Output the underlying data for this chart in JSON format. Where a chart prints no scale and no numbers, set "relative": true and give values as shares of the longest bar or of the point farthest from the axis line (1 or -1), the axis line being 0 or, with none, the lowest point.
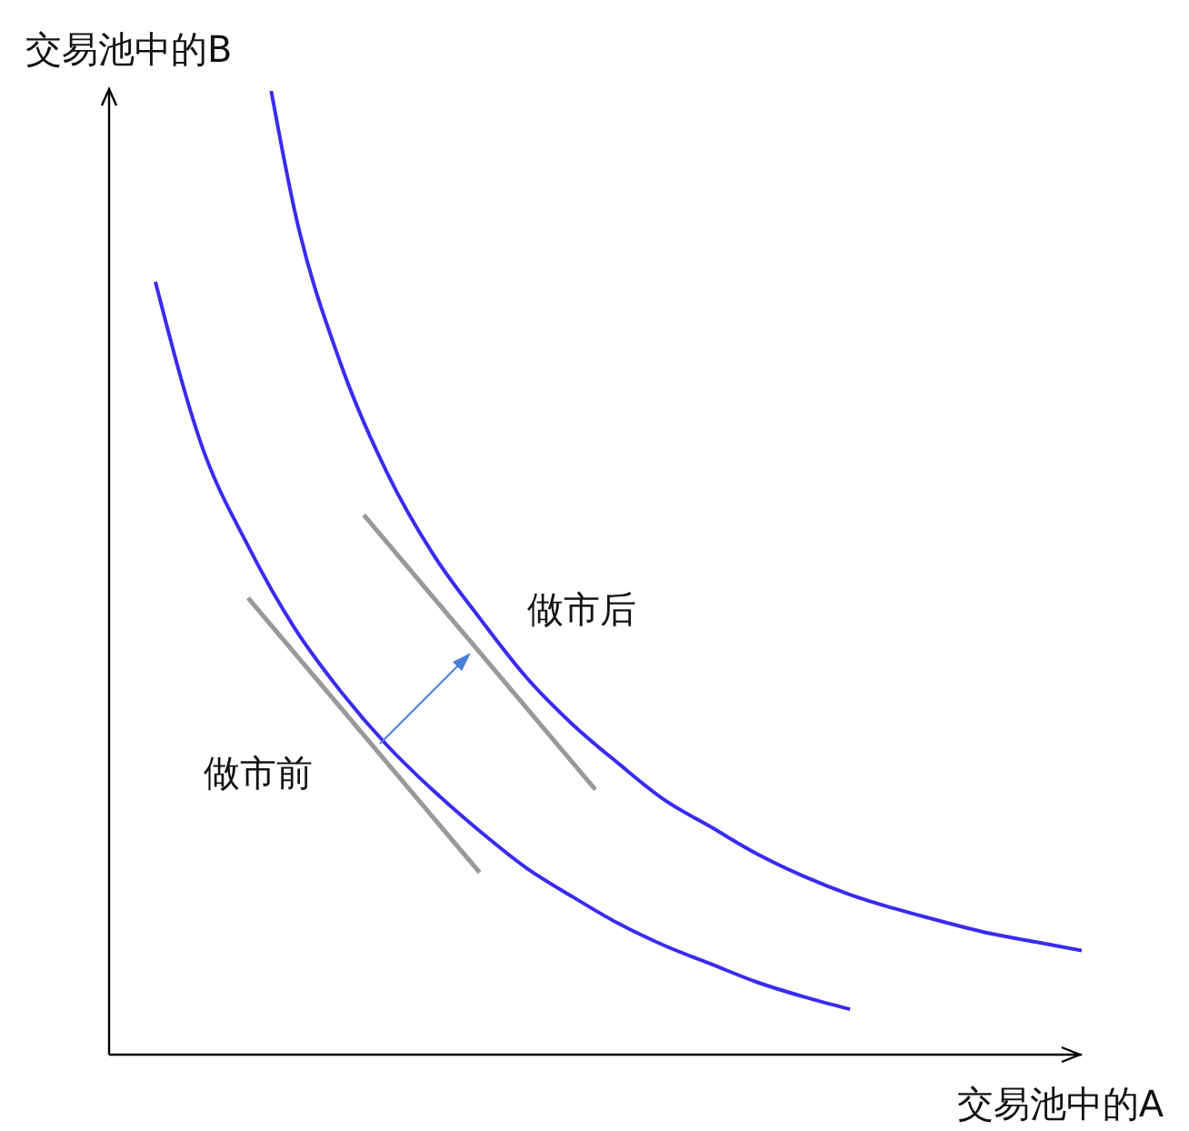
{
  "chart_data": {
    "type": "line",
    "relative": true,
    "xlabel": "交易池中的A",
    "ylabel": "交易池中的B",
    "annotations": [
      "做市前",
      "做市后"
    ],
    "categories": [
      null,
      null,
      null,
      null,
      null,
      null,
      null,
      null,
      null,
      null,
      null,
      null,
      null,
      null,
      null,
      null,
      null,
      null,
      null,
      null,
      null,
      null,
      null,
      null,
      null,
      null,
      null,
      null,
      null,
      null,
      null,
      null,
      null,
      null,
      null,
      null,
      null,
      null,
      null,
      null,
      null,
      null,
      null
    ],
    "series": [
      {
        "color": "#3a2bf0",
        "values": [
          null,
          null,
          0.802,
          null,
          0.632,
          null,
          0.528,
          null,
          0.443,
          null,
          0.377,
          null,
          0.321,
          null,
          0.274,
          null,
          0.232,
          null,
          0.194,
          null,
          0.164,
          null,
          0.136,
          null,
          0.113,
          null,
          0.094,
          null,
          0.075,
          null,
          0.06,
          null,
          0.047,
          null,
          null,
          null,
          null,
          null,
          null,
          null,
          null,
          null,
          null
        ]
      },
      {
        "color": "#3a2bf0",
        "values": [
          null,
          null,
          null,
          null,
          null,
          null,
          null,
          1.0,
          0.877,
          null,
          0.717,
          null,
          0.604,
          null,
          0.519,
          null,
          0.453,
          null,
          0.392,
          null,
          0.343,
          null,
          0.302,
          null,
          0.264,
          null,
          0.236,
          null,
          0.208,
          null,
          0.185,
          null,
          0.166,
          null,
          0.151,
          null,
          0.138,
          null,
          0.126,
          null,
          0.117,
          null,
          0.108
        ]
      },
      {
        "color": "#999999",
        "values": [
          null,
          null,
          null,
          null,
          null,
          null,
          0.474,
          null,
          null,
          null,
          null,
          null,
          null,
          null,
          null,
          null,
          0.189,
          null,
          null,
          null,
          null,
          null,
          null,
          null,
          null,
          null,
          null,
          null,
          null,
          null,
          null,
          null,
          null,
          null,
          null,
          null,
          null,
          null,
          null,
          null,
          null,
          null,
          null
        ]
      },
      {
        "color": "#999999",
        "values": [
          null,
          null,
          null,
          null,
          null,
          null,
          null,
          null,
          null,
          null,
          null,
          0.56,
          null,
          null,
          null,
          null,
          null,
          null,
          null,
          null,
          null,
          0.275,
          null,
          null,
          null,
          null,
          null,
          null,
          null,
          null,
          null,
          null,
          null,
          null,
          null,
          null,
          null,
          null,
          null,
          null,
          null,
          null,
          null
        ]
      }
    ]
  }
}
